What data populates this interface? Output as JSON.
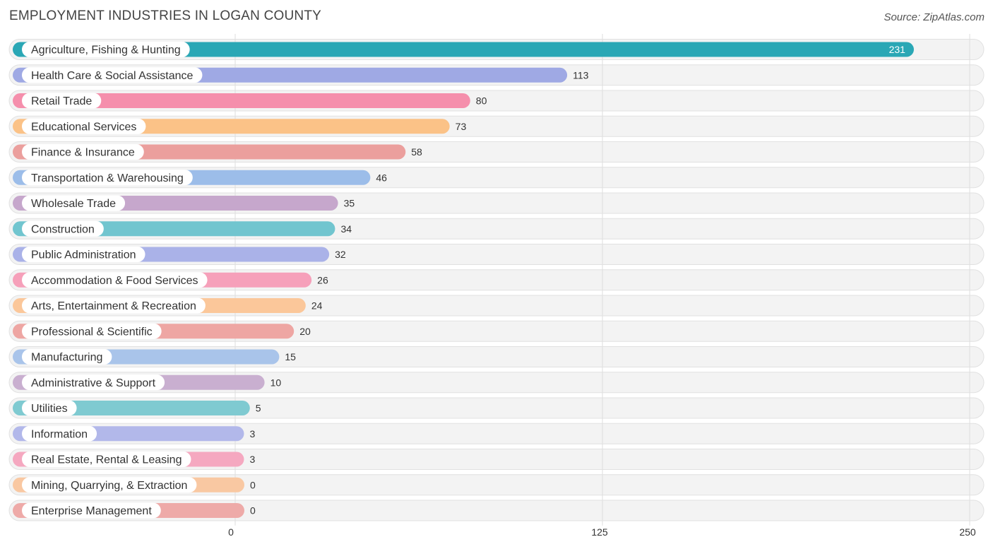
{
  "header": {
    "title": "EMPLOYMENT INDUSTRIES IN LOGAN COUNTY",
    "source": "Source: ZipAtlas.com"
  },
  "chart_data": {
    "type": "bar",
    "orientation": "horizontal",
    "title": "EMPLOYMENT INDUSTRIES IN LOGAN COUNTY",
    "xlabel": "",
    "ylabel": "",
    "xlim": [
      0,
      250
    ],
    "ticks": [
      0,
      125,
      250
    ],
    "grid": true,
    "categories": [
      "Agriculture, Fishing & Hunting",
      "Health Care & Social Assistance",
      "Retail Trade",
      "Educational Services",
      "Finance & Insurance",
      "Transportation & Warehousing",
      "Wholesale Trade",
      "Construction",
      "Public Administration",
      "Accommodation & Food Services",
      "Arts, Entertainment & Recreation",
      "Professional & Scientific",
      "Manufacturing",
      "Administrative & Support",
      "Utilities",
      "Information",
      "Real Estate, Rental & Leasing",
      "Mining, Quarrying, & Extraction",
      "Enterprise Management"
    ],
    "values": [
      231,
      113,
      80,
      73,
      58,
      46,
      35,
      34,
      32,
      26,
      24,
      20,
      15,
      10,
      5,
      3,
      3,
      0,
      0
    ],
    "colors": [
      "#2aa7b5",
      "#9fa9e4",
      "#f58fac",
      "#fbc287",
      "#eb9f9d",
      "#9cbde9",
      "#c6a7cc",
      "#71c5cf",
      "#aab2e8",
      "#f6a0ba",
      "#fbc79a",
      "#eea6a3",
      "#a9c4ea",
      "#c9afd0",
      "#7fcad1",
      "#b2b8ea",
      "#f5a8c0",
      "#f9c8a2",
      "#eeaaa8"
    ]
  }
}
